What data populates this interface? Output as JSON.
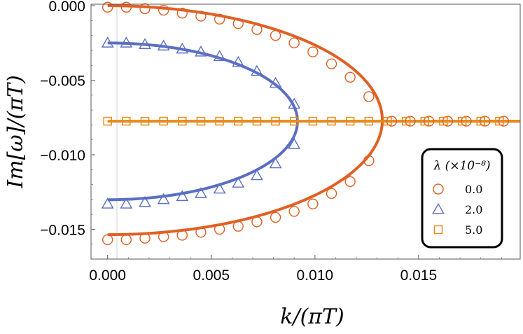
{
  "chart_data": {
    "type": "line",
    "xlabel": "k/(πT)",
    "ylabel": "Im[ω]/(πT)",
    "xlim": [
      -0.0008,
      0.0199
    ],
    "ylim": [
      -0.017,
      0.0001
    ],
    "grid": false,
    "legend_position": "bottom-right",
    "legend_title": "λ (×10⁻⁸)",
    "x_ticks": [
      {
        "value": 0.0,
        "label": "0.000"
      },
      {
        "value": 0.005,
        "label": "0.005"
      },
      {
        "value": 0.01,
        "label": "0.010"
      },
      {
        "value": 0.015,
        "label": "0.015"
      }
    ],
    "y_ticks": [
      {
        "value": 0.0,
        "label": "0.000"
      },
      {
        "value": -0.005,
        "label": "−0.005"
      },
      {
        "value": -0.01,
        "label": "−0.010"
      },
      {
        "value": -0.015,
        "label": "−0.015"
      }
    ],
    "series": [
      {
        "name": "0.0",
        "color": "#e06024",
        "marker": "circle",
        "curve": {
          "kc": 0.01325,
          "center": -0.00768,
          "halfwidth": 0.00768
        },
        "points_x": [
          0.0,
          0.0009,
          0.0018,
          0.0027,
          0.0036,
          0.0045,
          0.0054,
          0.0063,
          0.0072,
          0.0081,
          0.009,
          0.0099,
          0.0108,
          0.0117,
          0.0126
        ],
        "points_upper": [
          -0.0001,
          -0.0001,
          -0.0002,
          -0.0003,
          -0.0005,
          -0.0007,
          -0.0009,
          -0.0012,
          -0.0016,
          -0.002,
          -0.0025,
          -0.0031,
          -0.0039,
          -0.0048,
          -0.0061
        ],
        "points_lower": [
          -0.0157,
          -0.0157,
          -0.0156,
          -0.0155,
          -0.0154,
          -0.0152,
          -0.015,
          -0.0148,
          -0.0145,
          -0.0142,
          -0.0138,
          -0.0133,
          -0.0126,
          -0.0118,
          -0.0104
        ],
        "points_flat_x": [
          0.0137,
          0.0146,
          0.0155,
          0.0164,
          0.0173,
          0.0182,
          0.0191
        ],
        "points_flat_y": -0.00775
      },
      {
        "name": "2.0",
        "color": "#5b6fc3",
        "marker": "triangle",
        "curve": {
          "kc": 0.00916,
          "center": -0.00776,
          "halfwidth": 0.00526
        },
        "points_x": [
          0.0,
          0.0009,
          0.0018,
          0.0027,
          0.0036,
          0.0045,
          0.0054,
          0.0063,
          0.0072,
          0.0081,
          0.009
        ],
        "points_upper": [
          -0.0025,
          -0.0025,
          -0.0026,
          -0.0027,
          -0.0029,
          -0.0031,
          -0.0034,
          -0.0038,
          -0.0044,
          -0.0052,
          -0.0066
        ],
        "points_lower": [
          -0.0133,
          -0.0133,
          -0.0132,
          -0.013,
          -0.0128,
          -0.0126,
          -0.0123,
          -0.0119,
          -0.0114,
          -0.0106,
          -0.0093
        ]
      },
      {
        "name": "5.0",
        "color": "#e88a1a",
        "marker": "square",
        "flat_y": -0.00775,
        "points_x": [
          0.0,
          0.0009,
          0.0018,
          0.0027,
          0.0036,
          0.0045,
          0.0054,
          0.0063,
          0.0072,
          0.0081,
          0.009,
          0.0099,
          0.0108,
          0.0117,
          0.0126,
          0.0135,
          0.0144,
          0.0153,
          0.0162,
          0.0171,
          0.018,
          0.0189
        ],
        "points_y": -0.00775
      }
    ]
  }
}
